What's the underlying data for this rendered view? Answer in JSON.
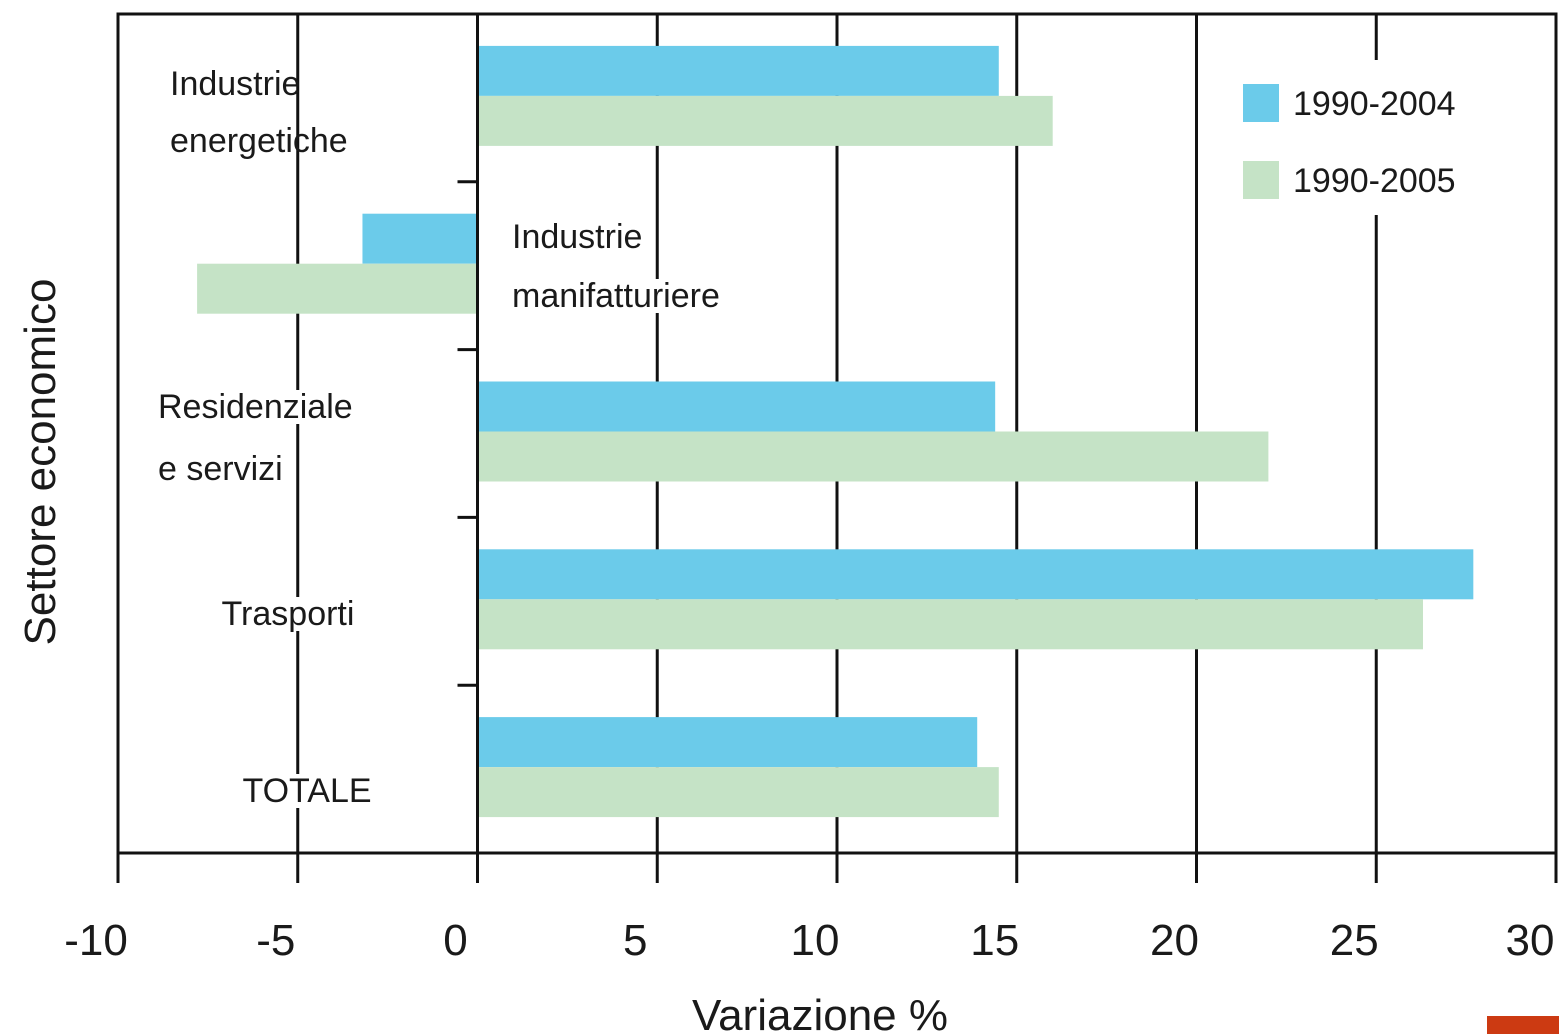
{
  "chart_data": {
    "type": "bar",
    "orientation": "horizontal",
    "title": "",
    "xlabel": "Variazione %",
    "ylabel": "Settore economico",
    "xlim": [
      -10,
      30
    ],
    "xticks": [
      "-10",
      "-5",
      "0",
      "5",
      "10",
      "15",
      "20",
      "25",
      "30"
    ],
    "grid": "vertical",
    "legend_position": "top-right",
    "categories": [
      {
        "line1": "Industrie",
        "line2": "energetiche"
      },
      {
        "line1": "Industrie",
        "line2": "manifatturiere"
      },
      {
        "line1": "Residenziale",
        "line2": "e servizi"
      },
      {
        "line1": "Trasporti",
        "line2": ""
      },
      {
        "line1": "TOTALE",
        "line2": ""
      }
    ],
    "series": [
      {
        "name": "1990-2004",
        "color": "#6bcbea",
        "values": [
          14.5,
          -3.2,
          14.4,
          27.7,
          13.9
        ]
      },
      {
        "name": "1990-2005",
        "color": "#c5e3c6",
        "values": [
          16.0,
          -7.8,
          22.0,
          26.3,
          14.5
        ]
      }
    ]
  }
}
